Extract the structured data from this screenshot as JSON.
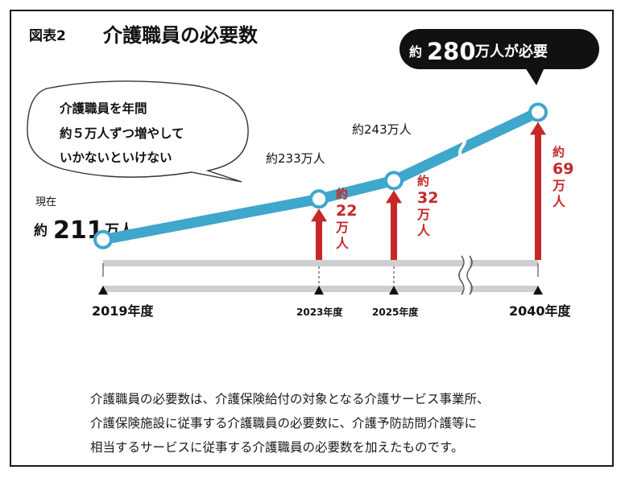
{
  "figure": {
    "label": "図表2",
    "title": "介護職員の必要数"
  },
  "callout_top": {
    "prefix": "約",
    "number": "280",
    "suffix": "万人が必要"
  },
  "speech_bubble": {
    "lines": [
      "介護職員を年間",
      "約５万人ずつ増やして",
      "いかないといけない"
    ]
  },
  "current": {
    "label": "現在",
    "prefix": "約",
    "number": "211",
    "suffix": "万人"
  },
  "point_labels": [
    "約233万人",
    "約243万人"
  ],
  "increase_labels": [
    [
      "約",
      "22",
      "万",
      "人"
    ],
    [
      "約",
      "32",
      "万",
      "人"
    ],
    [
      "約",
      "69",
      "万",
      "人"
    ]
  ],
  "colors": {
    "line": "#3fa6cc",
    "arrow": "#c62828",
    "axis_band": "#d9d9d9",
    "callout_bg": "#111111"
  },
  "chart_data": {
    "type": "line",
    "title": "介護職員の必要数",
    "xlabel": "",
    "ylabel": "",
    "x": [
      "2019年度",
      "2023年度",
      "2025年度",
      "2040年度"
    ],
    "series": [
      {
        "values": [
          211,
          233,
          243,
          280
        ]
      }
    ],
    "increases": [
      22,
      32,
      69
    ],
    "units": "万人",
    "ylim": [
      200,
      285
    ],
    "axis_break": "between 2025年度 and 2040年度",
    "grid": false
  },
  "notes": [
    "介護職員の必要数は、介護保険給付の対象となる介護サービス事業所、",
    "介護保険施設に従事する介護職員の必要数に、介護予防訪問介護等に",
    "相当するサービスに従事する介護職員の必要数を加えたものです。"
  ]
}
